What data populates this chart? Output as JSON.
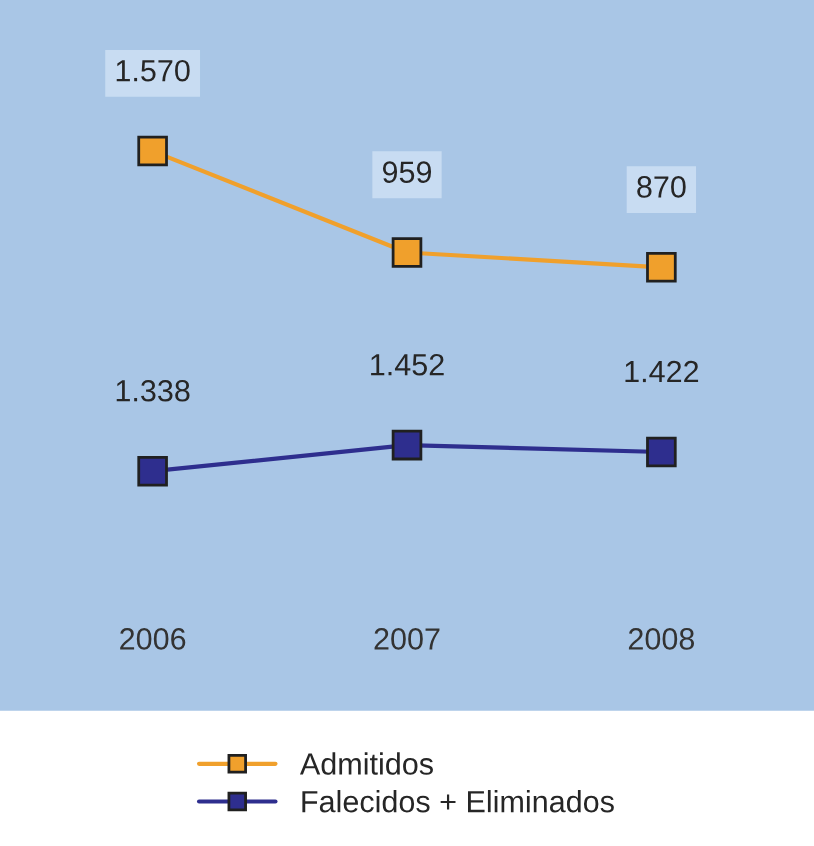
{
  "chart_data": {
    "type": "line",
    "categories": [
      "2006",
      "2007",
      "2008"
    ],
    "series": [
      {
        "name": "Admitidos",
        "color": "#f0a02c",
        "values": [
          1570,
          959,
          870
        ],
        "value_labels": [
          "1.570",
          "959",
          "870"
        ]
      },
      {
        "name": "Falecidos + Eliminados",
        "color": "#2e2e8e",
        "values": [
          1338,
          1452,
          1422
        ],
        "value_labels": [
          "1.338",
          "1.452",
          "1.422"
        ],
        "axis": "y2"
      }
    ],
    "ylim": [
      -1800,
      2480
    ],
    "y2lim": [
      290,
      3400
    ],
    "tick_labels": "x",
    "marker": "square",
    "line_style": "solid",
    "legend": "bottom"
  }
}
